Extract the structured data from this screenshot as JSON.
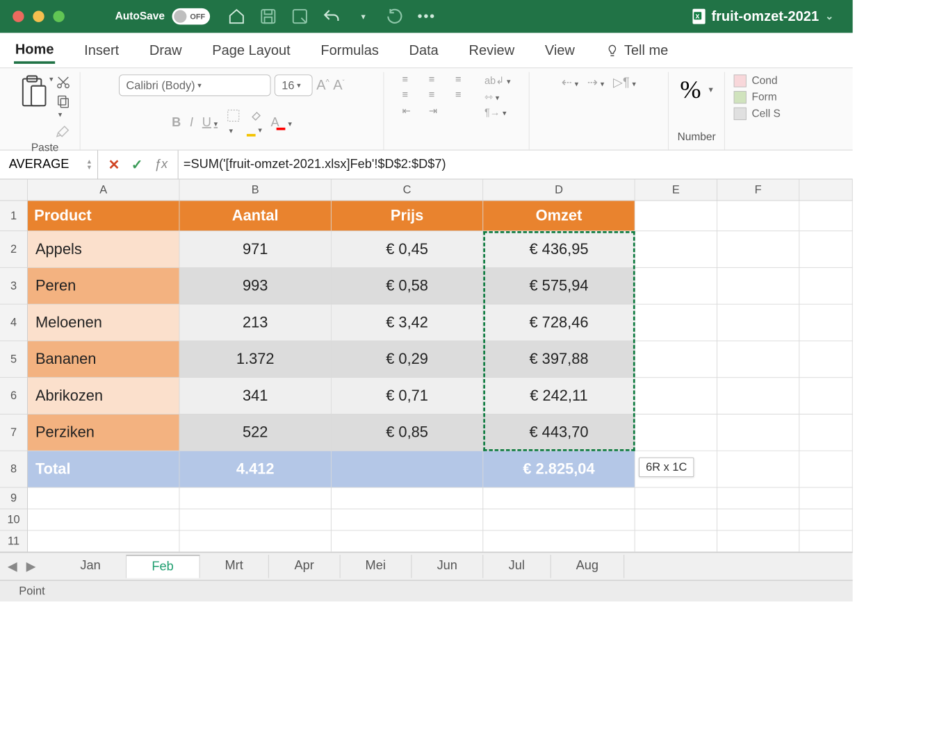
{
  "titlebar": {
    "autosave_label": "AutoSave",
    "autosave_state": "OFF",
    "doc_name": "fruit-omzet-2021"
  },
  "ribbon_tabs": [
    "Home",
    "Insert",
    "Draw",
    "Page Layout",
    "Formulas",
    "Data",
    "Review",
    "View"
  ],
  "ribbon_tellme": "Tell me",
  "ribbon": {
    "paste_label": "Paste",
    "font_name": "Calibri (Body)",
    "font_size": "16",
    "number_label": "Number",
    "cond_label": "Cond",
    "form_label": "Form",
    "cells_label": "Cell S"
  },
  "formula_bar": {
    "namebox": "AVERAGE",
    "formula": "=SUM('[fruit-omzet-2021.xlsx]Feb'!$D$2:$D$7)"
  },
  "grid": {
    "columns": [
      "A",
      "B",
      "C",
      "D",
      "E",
      "F"
    ],
    "header_row": [
      "Product",
      "Aantal",
      "Prijs",
      "Omzet"
    ],
    "rows": [
      {
        "product": "Appels",
        "aantal": "971",
        "prijs": "€ 0,45",
        "omzet": "€ 436,95",
        "shade": "light"
      },
      {
        "product": "Peren",
        "aantal": "993",
        "prijs": "€ 0,58",
        "omzet": "€ 575,94",
        "shade": "dark"
      },
      {
        "product": "Meloenen",
        "aantal": "213",
        "prijs": "€ 3,42",
        "omzet": "€ 728,46",
        "shade": "light"
      },
      {
        "product": "Bananen",
        "aantal": "1.372",
        "prijs": "€ 0,29",
        "omzet": "€ 397,88",
        "shade": "dark"
      },
      {
        "product": "Abrikozen",
        "aantal": "341",
        "prijs": "€ 0,71",
        "omzet": "€ 242,11",
        "shade": "light"
      },
      {
        "product": "Perziken",
        "aantal": "522",
        "prijs": "€ 0,85",
        "omzet": "€ 443,70",
        "shade": "dark"
      }
    ],
    "total_row": {
      "label": "Total",
      "aantal": "4.412",
      "prijs": "",
      "omzet": "€ 2.825,04"
    },
    "selection_hint": "6R x 1C",
    "colors": {
      "header_bg": "#e9832e",
      "prod_light": "#fbe0cc",
      "prod_dark": "#f3b280",
      "num_light": "#efefef",
      "num_dark": "#dcdcdc",
      "total_bg": "#b4c7e7",
      "marquee": "#107c41"
    }
  },
  "sheet_tabs": [
    "Jan",
    "Feb",
    "Mrt",
    "Apr",
    "Mei",
    "Jun",
    "Jul",
    "Aug"
  ],
  "sheet_active": "Feb",
  "status_text": "Point"
}
